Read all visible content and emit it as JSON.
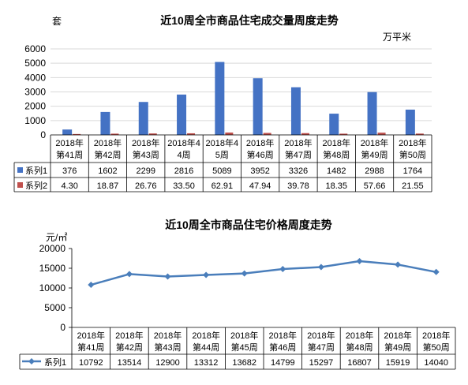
{
  "chart_data": [
    {
      "type": "bar",
      "title": "近10周全市商品住宅成交量周度走势",
      "left_unit": "套",
      "right_unit": "万平米",
      "categories": [
        [
          "2018年",
          "第41周"
        ],
        [
          "2018年",
          "第42周"
        ],
        [
          "2018年",
          "第43周"
        ],
        [
          "2018年4",
          "4周"
        ],
        [
          "2018年4",
          "5周"
        ],
        [
          "2018年",
          "第46周"
        ],
        [
          "2018年",
          "第47周"
        ],
        [
          "2018年",
          "第48周"
        ],
        [
          "2018年",
          "第49周"
        ],
        [
          "2018年",
          "第50周"
        ]
      ],
      "series": [
        {
          "name": "系列1",
          "color": "#4472c4",
          "values": [
            376,
            1602,
            2299,
            2816,
            5089,
            3952,
            3326,
            1482,
            2988,
            1764
          ]
        },
        {
          "name": "系列2",
          "color": "#c0504d",
          "values": [
            4.3,
            18.87,
            26.76,
            33.5,
            62.91,
            47.94,
            39.78,
            18.35,
            57.66,
            21.55
          ]
        }
      ],
      "value_labels": [
        [
          "376",
          "1602",
          "2299",
          "2816",
          "5089",
          "3952",
          "3326",
          "1482",
          "2988",
          "1764"
        ],
        [
          "4.30",
          "18.87",
          "26.76",
          "33.50",
          "62.91",
          "47.94",
          "39.78",
          "18.35",
          "57.66",
          "21.55"
        ]
      ],
      "ylim": [
        0,
        6000
      ],
      "yticks": [
        "0",
        "1000",
        "2000",
        "3000",
        "4000",
        "5000",
        "6000"
      ],
      "grid": true,
      "legend": "data-table"
    },
    {
      "type": "line",
      "title": "近10周全市商品住宅价格周度走势",
      "left_unit": "元/㎡",
      "categories": [
        [
          "2018年",
          "第41周"
        ],
        [
          "2018年",
          "第42周"
        ],
        [
          "2018年",
          "第43周"
        ],
        [
          "2018年",
          "第44周"
        ],
        [
          "2018年",
          "第45周"
        ],
        [
          "2018年",
          "第46周"
        ],
        [
          "2018年",
          "第47周"
        ],
        [
          "2018年",
          "第48周"
        ],
        [
          "2018年",
          "第49周"
        ],
        [
          "2018年",
          "第50周"
        ]
      ],
      "series": [
        {
          "name": "系列1",
          "color": "#4a7ebb",
          "values": [
            10792,
            13514,
            12900,
            13312,
            13682,
            14799,
            15297,
            16807,
            15919,
            14040
          ]
        }
      ],
      "value_labels": [
        [
          "10792",
          "13514",
          "12900",
          "13312",
          "13682",
          "14799",
          "15297",
          "16807",
          "15919",
          "14040"
        ]
      ],
      "ylim": [
        0,
        20000
      ],
      "yticks": [
        "0",
        "5000",
        "10000",
        "15000",
        "20000"
      ],
      "grid": false,
      "legend": "data-table"
    }
  ]
}
